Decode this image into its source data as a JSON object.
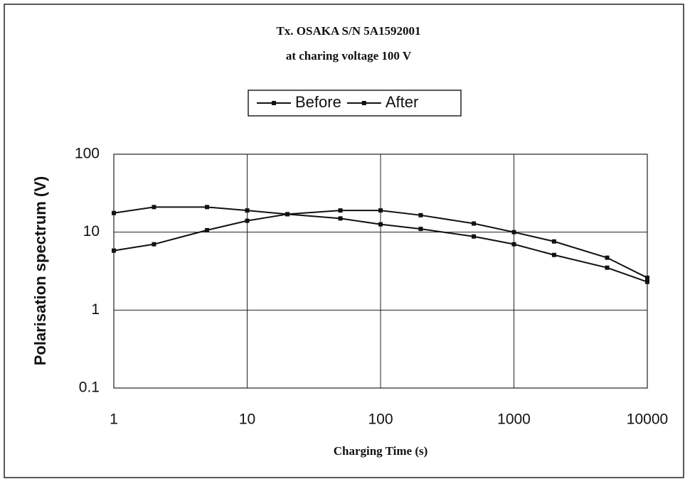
{
  "chart_data": {
    "type": "line",
    "title": "Tx. OSAKA S/N 5A1592001",
    "subtitle": "at charing voltage 100 V",
    "x_label": "Charging Time (s)",
    "y_label": "Polarisation spectrum (V)",
    "x": [
      1,
      2,
      5,
      10,
      20,
      50,
      100,
      200,
      500,
      1000,
      2000,
      5000,
      10000
    ],
    "series": [
      {
        "name": "Before",
        "color": "#111111",
        "values": [
          17.6,
          21,
          21,
          19,
          17,
          15,
          12.6,
          11,
          8.8,
          7,
          5.1,
          3.5,
          2.3
        ]
      },
      {
        "name": "After",
        "color": "#111111",
        "values": [
          5.8,
          7,
          10.6,
          14,
          17,
          19,
          19,
          16.5,
          12.9,
          10,
          7.6,
          4.7,
          2.6
        ]
      }
    ],
    "xlim": [
      1,
      10000
    ],
    "xticks": [
      1,
      10,
      100,
      1000,
      10000
    ],
    "ylim": [
      0.1,
      100
    ],
    "yticks": [
      0.1,
      1,
      10,
      100
    ],
    "x_log": true,
    "y_log": true,
    "grid": true,
    "legend": "top"
  }
}
